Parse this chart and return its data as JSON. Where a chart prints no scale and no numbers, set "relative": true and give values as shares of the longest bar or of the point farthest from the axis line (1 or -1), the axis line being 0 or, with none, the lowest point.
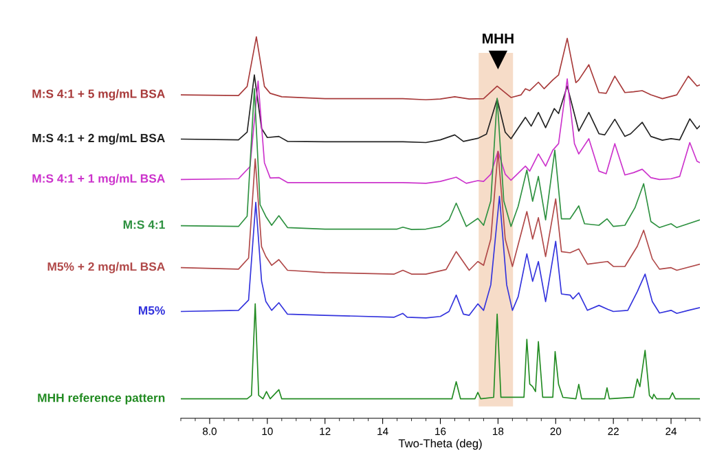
{
  "chart_data": {
    "type": "line",
    "relative": true,
    "xlabel": "Two-Theta (deg)",
    "xlim": [
      7.0,
      25.0
    ],
    "xticks": [
      {
        "value": 8,
        "label": "8.0"
      },
      10,
      12,
      14,
      16,
      18,
      20,
      22,
      24
    ],
    "grid": false,
    "legend": false,
    "marker": "none",
    "line_style": "solid",
    "bands": [
      {
        "axis": "x",
        "from": 17.33,
        "to": 18.52,
        "color": "#f6dcc8"
      }
    ],
    "annotations": [
      {
        "text": "MHH",
        "x": 18.0,
        "y": 0.94
      }
    ],
    "series": [
      {
        "name": "M:S 4:1 + 5 mg/mL BSA",
        "color": "#a83a3a",
        "x": [
          7.0,
          9.0,
          9.3,
          9.62,
          9.9,
          10.1,
          10.5,
          12.0,
          14.7,
          15.5,
          16.0,
          16.5,
          17.0,
          17.5,
          17.97,
          18.45,
          18.8,
          18.95,
          19.1,
          19.4,
          19.6,
          19.9,
          20.1,
          20.4,
          20.7,
          20.8,
          21.15,
          21.5,
          21.75,
          22.05,
          22.4,
          22.7,
          23.0,
          23.3,
          23.7,
          24.2,
          24.6,
          24.9,
          25.0
        ],
        "values": [
          0.848,
          0.846,
          0.87,
          1.0,
          0.87,
          0.852,
          0.843,
          0.838,
          0.838,
          0.835,
          0.837,
          0.843,
          0.837,
          0.838,
          0.871,
          0.841,
          0.848,
          0.864,
          0.859,
          0.881,
          0.864,
          0.887,
          0.9,
          0.996,
          0.88,
          0.887,
          0.927,
          0.854,
          0.852,
          0.897,
          0.854,
          0.856,
          0.859,
          0.848,
          0.838,
          0.848,
          0.897,
          0.871,
          0.874
        ]
      },
      {
        "name": "M:S 4:1 + 2 mg/mL BSA",
        "color": "#222222",
        "x": [
          7.0,
          9.0,
          9.3,
          9.55,
          9.8,
          10.0,
          10.4,
          10.7,
          12.0,
          14.7,
          15.5,
          16.0,
          16.5,
          16.8,
          17.3,
          17.6,
          17.97,
          18.25,
          18.45,
          18.95,
          19.15,
          19.4,
          19.65,
          19.95,
          20.1,
          20.4,
          20.8,
          21.15,
          21.5,
          21.7,
          22.05,
          22.4,
          22.6,
          23.0,
          23.3,
          23.7,
          24.0,
          24.3,
          24.65,
          24.9,
          25.0
        ],
        "values": [
          0.732,
          0.73,
          0.75,
          0.9,
          0.76,
          0.736,
          0.739,
          0.726,
          0.725,
          0.725,
          0.723,
          0.73,
          0.743,
          0.726,
          0.734,
          0.745,
          0.837,
          0.75,
          0.733,
          0.789,
          0.766,
          0.802,
          0.762,
          0.812,
          0.799,
          0.871,
          0.753,
          0.802,
          0.746,
          0.743,
          0.784,
          0.739,
          0.746,
          0.776,
          0.739,
          0.729,
          0.733,
          0.73,
          0.785,
          0.759,
          0.767
        ]
      },
      {
        "name": "M:S 4:1 + 1 mg/mL BSA",
        "color": "#cc33cc",
        "x": [
          7.0,
          9.0,
          9.4,
          9.68,
          9.9,
          10.1,
          10.4,
          10.7,
          12.0,
          14.7,
          15.5,
          16.0,
          16.55,
          16.9,
          17.3,
          17.5,
          17.75,
          18.0,
          18.25,
          18.45,
          18.95,
          19.1,
          19.4,
          19.65,
          19.9,
          20.1,
          20.4,
          20.65,
          20.8,
          21.15,
          21.5,
          21.75,
          22.05,
          22.4,
          22.7,
          23.0,
          23.3,
          23.6,
          24.0,
          24.3,
          24.65,
          24.9,
          25.0
        ],
        "values": [
          0.626,
          0.628,
          0.66,
          0.884,
          0.67,
          0.63,
          0.631,
          0.618,
          0.618,
          0.618,
          0.616,
          0.621,
          0.632,
          0.616,
          0.623,
          0.621,
          0.64,
          0.7,
          0.64,
          0.624,
          0.661,
          0.648,
          0.693,
          0.661,
          0.703,
          0.72,
          0.89,
          0.72,
          0.693,
          0.733,
          0.648,
          0.641,
          0.72,
          0.638,
          0.644,
          0.653,
          0.631,
          0.626,
          0.628,
          0.634,
          0.723,
          0.674,
          0.67
        ]
      },
      {
        "name": "M:S 4:1",
        "color": "#2e9140",
        "x": [
          7.0,
          9.0,
          9.3,
          9.55,
          9.75,
          9.95,
          10.15,
          10.4,
          10.7,
          12.0,
          14.5,
          14.7,
          15.0,
          15.5,
          16.0,
          16.3,
          16.55,
          16.9,
          17.3,
          17.5,
          17.75,
          17.97,
          18.2,
          18.45,
          18.7,
          19.0,
          19.2,
          19.4,
          19.65,
          19.97,
          20.2,
          20.5,
          20.8,
          21.0,
          21.5,
          21.78,
          22.0,
          22.4,
          22.75,
          23.05,
          23.3,
          23.6,
          24.0,
          24.2,
          25.0
        ],
        "values": [
          0.505,
          0.503,
          0.53,
          0.864,
          0.56,
          0.529,
          0.506,
          0.531,
          0.5,
          0.496,
          0.496,
          0.501,
          0.495,
          0.496,
          0.503,
          0.52,
          0.564,
          0.503,
          0.524,
          0.506,
          0.57,
          0.839,
          0.57,
          0.503,
          0.556,
          0.651,
          0.569,
          0.634,
          0.52,
          0.703,
          0.523,
          0.523,
          0.557,
          0.51,
          0.506,
          0.523,
          0.503,
          0.506,
          0.552,
          0.615,
          0.516,
          0.5,
          0.51,
          0.5,
          0.52
        ]
      },
      {
        "name": "M5% + 2 mg/mL BSA",
        "color": "#b04848",
        "x": [
          7.0,
          9.0,
          9.35,
          9.58,
          9.8,
          9.95,
          10.15,
          10.4,
          10.7,
          12.0,
          14.4,
          14.7,
          15.0,
          15.5,
          16.2,
          16.55,
          17.0,
          17.3,
          17.5,
          17.75,
          18.0,
          18.25,
          18.5,
          19.0,
          19.2,
          19.4,
          19.65,
          20.0,
          20.2,
          20.5,
          20.8,
          21.1,
          21.8,
          22.0,
          22.4,
          22.83,
          23.05,
          23.35,
          23.6,
          24.0,
          24.2,
          25.0
        ],
        "values": [
          0.395,
          0.391,
          0.42,
          0.68,
          0.45,
          0.424,
          0.401,
          0.416,
          0.388,
          0.382,
          0.378,
          0.388,
          0.378,
          0.378,
          0.39,
          0.437,
          0.388,
          0.411,
          0.401,
          0.47,
          0.7,
          0.47,
          0.398,
          0.542,
          0.47,
          0.526,
          0.424,
          0.575,
          0.437,
          0.434,
          0.444,
          0.404,
          0.411,
          0.398,
          0.398,
          0.451,
          0.493,
          0.418,
          0.391,
          0.395,
          0.388,
          0.404
        ]
      },
      {
        "name": "M5%",
        "color": "#3333dd",
        "x": [
          7.0,
          9.0,
          9.35,
          9.6,
          9.8,
          9.95,
          10.15,
          10.4,
          10.7,
          12.0,
          14.4,
          14.7,
          14.85,
          15.5,
          16.0,
          16.3,
          16.55,
          16.8,
          17.0,
          17.3,
          17.5,
          17.75,
          18.05,
          18.3,
          18.5,
          18.7,
          19.0,
          19.2,
          19.4,
          19.65,
          20.0,
          20.2,
          20.5,
          20.6,
          20.8,
          21.1,
          21.5,
          21.8,
          22.0,
          22.5,
          22.83,
          23.1,
          23.35,
          23.6,
          24.0,
          24.2,
          24.6,
          25.0
        ],
        "values": [
          0.28,
          0.283,
          0.31,
          0.566,
          0.36,
          0.306,
          0.283,
          0.303,
          0.273,
          0.27,
          0.265,
          0.275,
          0.265,
          0.263,
          0.267,
          0.28,
          0.323,
          0.273,
          0.27,
          0.3,
          0.283,
          0.35,
          0.582,
          0.35,
          0.283,
          0.319,
          0.431,
          0.359,
          0.411,
          0.306,
          0.464,
          0.326,
          0.323,
          0.313,
          0.329,
          0.283,
          0.296,
          0.286,
          0.28,
          0.283,
          0.332,
          0.378,
          0.306,
          0.276,
          0.283,
          0.275,
          0.283,
          0.29
        ]
      },
      {
        "name": "MHH reference pattern",
        "color": "#228b22",
        "x": [
          7.0,
          9.3,
          9.45,
          9.58,
          9.7,
          9.85,
          9.97,
          10.1,
          10.4,
          10.5,
          16.4,
          16.55,
          16.7,
          17.2,
          17.3,
          17.4,
          17.85,
          17.97,
          18.1,
          18.9,
          19.0,
          19.1,
          19.2,
          19.3,
          19.4,
          19.55,
          19.9,
          19.98,
          20.1,
          20.25,
          20.7,
          20.8,
          20.9,
          21.7,
          21.78,
          21.86,
          22.7,
          22.83,
          22.92,
          23.1,
          23.25,
          23.35,
          23.4,
          23.5,
          23.95,
          24.05,
          24.15,
          25.0
        ],
        "values": [
          0.051,
          0.051,
          0.06,
          0.3,
          0.06,
          0.051,
          0.07,
          0.051,
          0.075,
          0.051,
          0.051,
          0.096,
          0.051,
          0.051,
          0.068,
          0.051,
          0.055,
          0.273,
          0.055,
          0.055,
          0.207,
          0.09,
          0.083,
          0.07,
          0.201,
          0.055,
          0.055,
          0.175,
          0.089,
          0.055,
          0.051,
          0.089,
          0.051,
          0.051,
          0.08,
          0.051,
          0.055,
          0.103,
          0.083,
          0.178,
          0.06,
          0.051,
          0.063,
          0.051,
          0.051,
          0.067,
          0.051,
          0.051
        ]
      }
    ]
  }
}
